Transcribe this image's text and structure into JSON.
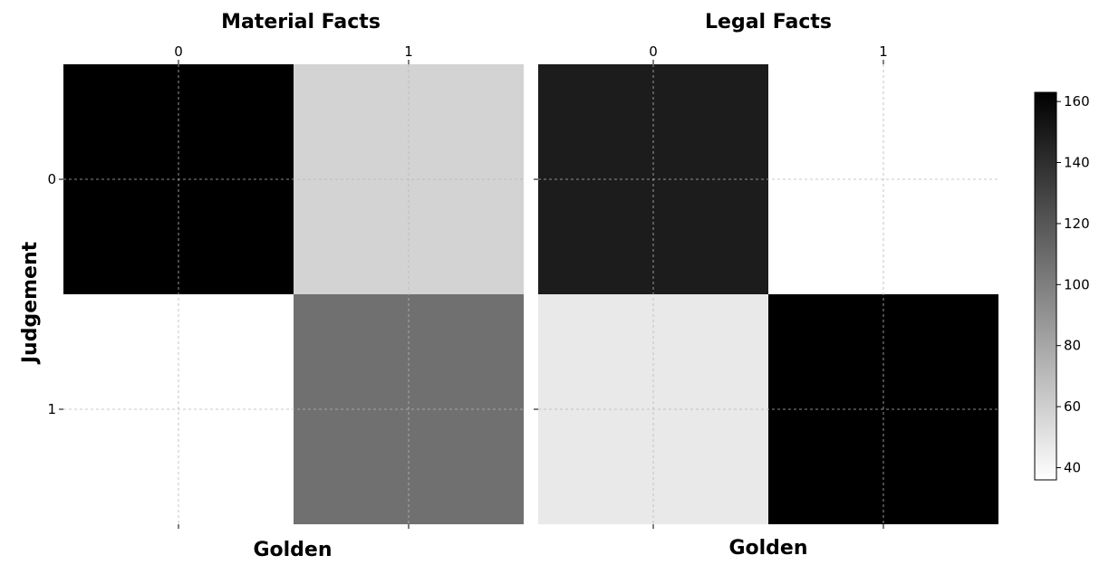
{
  "chart_data": [
    {
      "type": "heatmap",
      "title": "Material Facts",
      "xlabel": "Golden",
      "ylabel": "Judgement",
      "x_categories": [
        "0",
        "1"
      ],
      "y_categories": [
        "0",
        "1"
      ],
      "values": [
        [
          163,
          58
        ],
        [
          36,
          107
        ]
      ],
      "grid": true
    },
    {
      "type": "heatmap",
      "title": "Legal Facts",
      "xlabel": "Golden",
      "ylabel": "",
      "x_categories": [
        "0",
        "1"
      ],
      "y_categories": [
        "",
        ""
      ],
      "values": [
        [
          149,
          36
        ],
        [
          47,
          163
        ]
      ],
      "grid": true
    }
  ],
  "colorbar": {
    "min": 36,
    "max": 163,
    "ticks": [
      "40",
      "60",
      "80",
      "100",
      "120",
      "140",
      "160"
    ],
    "colormap": "Greys",
    "low_color": "#ffffff",
    "high_color": "#000000"
  }
}
